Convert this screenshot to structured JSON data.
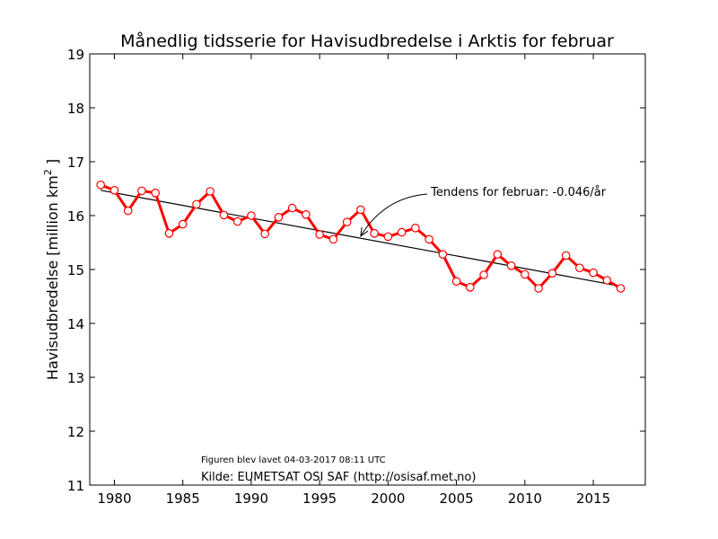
{
  "chart_data": {
    "type": "line",
    "title": "Månedlig tidsserie for Havisudbredelse i Arktis for februar",
    "xlabel": "",
    "ylabel": "Havisudbredelse [million km",
    "ylabel_sup": "2",
    "ylabel_end": " ]",
    "xlim": [
      1978.2,
      2018.8
    ],
    "ylim": [
      11,
      19
    ],
    "xticks": [
      1980,
      1985,
      1990,
      1995,
      2000,
      2005,
      2010,
      2015
    ],
    "yticks": [
      11,
      12,
      13,
      14,
      15,
      16,
      17,
      18,
      19
    ],
    "grid": false,
    "series": [
      {
        "name": "",
        "color": "#ff0000",
        "marker": "open-circle",
        "x": [
          1979,
          1980,
          1981,
          1982,
          1983,
          1984,
          1985,
          1986,
          1987,
          1988,
          1989,
          1990,
          1991,
          1992,
          1993,
          1994,
          1995,
          1996,
          1997,
          1998,
          1999,
          2000,
          2001,
          2002,
          2003,
          2004,
          2005,
          2006,
          2007,
          2008,
          2009,
          2010,
          2011,
          2012,
          2013,
          2014,
          2015,
          2016,
          2017
        ],
        "y": [
          16.57,
          16.47,
          16.09,
          16.46,
          16.42,
          15.67,
          15.84,
          16.21,
          16.45,
          16.01,
          15.89,
          16.0,
          15.66,
          15.97,
          16.14,
          16.02,
          15.65,
          15.56,
          15.88,
          16.11,
          15.67,
          15.61,
          15.69,
          15.77,
          15.56,
          15.28,
          14.78,
          14.67,
          14.9,
          15.28,
          15.07,
          14.91,
          14.65,
          14.93,
          15.26,
          15.03,
          14.94,
          14.8,
          14.65
        ]
      }
    ],
    "trend": {
      "color": "#000000",
      "x": [
        1979,
        2017
      ],
      "y": [
        16.47,
        14.69
      ]
    },
    "annotation": {
      "text": "Tendens for februar: -0.046/år",
      "x": 2003,
      "y": 16.35,
      "arrow_to_x": 1998,
      "arrow_to_y": 15.62
    },
    "footer": {
      "created": "Figuren blev lavet 04-03-2017 08:11 UTC",
      "source": "Kilde: EUMETSAT OSI SAF (http://osisaf.met.no)"
    }
  }
}
